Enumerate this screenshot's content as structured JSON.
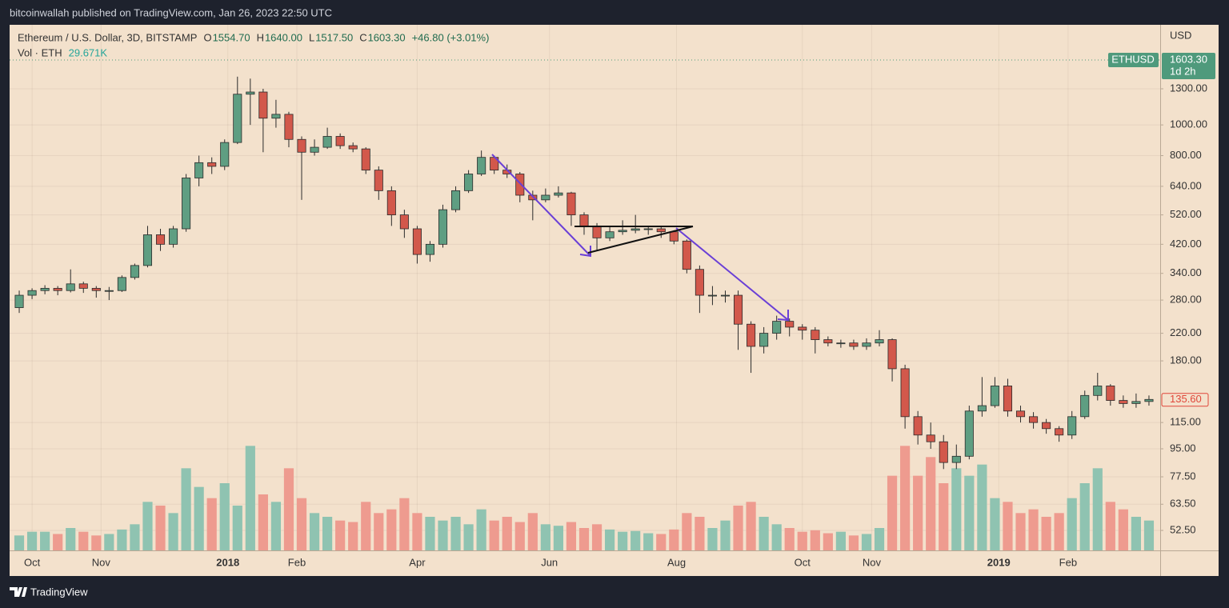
{
  "header": {
    "publisher": "bitcoinwallah published on TradingView.com, Jan 26, 2023 22:50 UTC"
  },
  "footer": {
    "brand": "TradingView"
  },
  "chart_data": {
    "type": "candlestick",
    "symbol": "Ethereum / U.S. Dollar, 3D, BITSTAMP",
    "legend_values": [
      {
        "key": "O",
        "value": "1554.70"
      },
      {
        "key": "H",
        "value": "1640.00"
      },
      {
        "key": "L",
        "value": "1517.50"
      },
      {
        "key": "C",
        "value": "1603.30"
      }
    ],
    "change": "+46.80 (+3.01%)",
    "volume_label": "Vol · ETH",
    "volume_value": "29.671K",
    "currency": "USD",
    "log_scale": true,
    "grid": true,
    "up_color": "#5f9e82",
    "down_color": "#d2584b",
    "volume_up_color": "#8fc3b1",
    "volume_down_color": "#ee9b8f",
    "xlim": [
      -0.75,
      88.875
    ],
    "xticks": [
      {
        "value": 1,
        "label": "Oct"
      },
      {
        "value": 6.375,
        "label": "Nov"
      },
      {
        "value": 16.25,
        "label": "2018"
      },
      {
        "value": 21.625,
        "label": "Feb"
      },
      {
        "value": 31,
        "label": "Apr"
      },
      {
        "value": 41.3,
        "label": "Jun"
      },
      {
        "value": 51.2,
        "label": "Aug"
      },
      {
        "value": 61,
        "label": "Oct"
      },
      {
        "value": 66.4,
        "label": "Nov"
      },
      {
        "value": 76.3,
        "label": "2019"
      },
      {
        "value": 81.7,
        "label": "Feb"
      }
    ],
    "ylim": [
      45.4,
      2070
    ],
    "yticks": [
      {
        "value": 1300,
        "label": "1300.00"
      },
      {
        "value": 1000,
        "label": "1000.00"
      },
      {
        "value": 800,
        "label": "800.00"
      },
      {
        "value": 640,
        "label": "640.00"
      },
      {
        "value": 520,
        "label": "520.00"
      },
      {
        "value": 420,
        "label": "420.00"
      },
      {
        "value": 340,
        "label": "340.00"
      },
      {
        "value": 280,
        "label": "280.00"
      },
      {
        "value": 220,
        "label": "220.00"
      },
      {
        "value": 180,
        "label": "180.00"
      },
      {
        "value": 115,
        "label": "115.00"
      },
      {
        "value": 95,
        "label": "95.00"
      },
      {
        "value": 77.5,
        "label": "77.50"
      },
      {
        "value": 63.5,
        "label": "63.50"
      },
      {
        "value": 52.5,
        "label": "52.50"
      }
    ],
    "price_markers": [
      {
        "name": "ETHUSD",
        "value": 1603.3,
        "label": "1603.30",
        "countdown": "1d 2h",
        "color": "#4f9a7c"
      },
      {
        "value": 135.6,
        "label": "135.60",
        "color": "#e0473a"
      }
    ],
    "volume_lim": [
      0,
      1500
    ],
    "ohlc": [
      [
        265,
        300,
        255,
        290
      ],
      [
        290,
        305,
        282,
        300
      ],
      [
        300,
        312,
        292,
        305
      ],
      [
        305,
        310,
        290,
        300
      ],
      [
        300,
        350,
        296,
        315
      ],
      [
        315,
        320,
        295,
        305
      ],
      [
        305,
        310,
        285,
        300
      ],
      [
        300,
        308,
        280,
        300
      ],
      [
        300,
        335,
        297,
        330
      ],
      [
        330,
        365,
        325,
        360
      ],
      [
        360,
        480,
        355,
        450
      ],
      [
        450,
        470,
        400,
        420
      ],
      [
        420,
        480,
        410,
        470
      ],
      [
        470,
        700,
        460,
        680
      ],
      [
        680,
        800,
        640,
        760
      ],
      [
        760,
        790,
        700,
        740
      ],
      [
        740,
        900,
        720,
        880
      ],
      [
        880,
        1420,
        870,
        1250
      ],
      [
        1250,
        1400,
        1000,
        1270
      ],
      [
        1270,
        1300,
        820,
        1050
      ],
      [
        1050,
        1200,
        980,
        1080
      ],
      [
        1080,
        1100,
        850,
        900
      ],
      [
        900,
        920,
        580,
        820
      ],
      [
        820,
        900,
        800,
        850
      ],
      [
        850,
        980,
        840,
        920
      ],
      [
        920,
        940,
        840,
        860
      ],
      [
        860,
        880,
        820,
        840
      ],
      [
        840,
        850,
        700,
        720
      ],
      [
        720,
        740,
        580,
        620
      ],
      [
        620,
        640,
        480,
        520
      ],
      [
        520,
        540,
        440,
        470
      ],
      [
        470,
        480,
        365,
        390
      ],
      [
        390,
        430,
        370,
        420
      ],
      [
        420,
        560,
        410,
        540
      ],
      [
        540,
        640,
        530,
        620
      ],
      [
        620,
        720,
        610,
        700
      ],
      [
        700,
        830,
        690,
        790
      ],
      [
        790,
        800,
        700,
        720
      ],
      [
        720,
        750,
        680,
        700
      ],
      [
        700,
        710,
        570,
        600
      ],
      [
        600,
        620,
        500,
        580
      ],
      [
        580,
        630,
        570,
        600
      ],
      [
        600,
        640,
        590,
        610
      ],
      [
        610,
        615,
        480,
        520
      ],
      [
        520,
        530,
        450,
        480
      ],
      [
        480,
        490,
        400,
        440
      ],
      [
        440,
        480,
        430,
        460
      ],
      [
        460,
        500,
        450,
        465
      ],
      [
        465,
        520,
        455,
        470
      ],
      [
        470,
        480,
        450,
        470
      ],
      [
        470,
        480,
        440,
        460
      ],
      [
        460,
        465,
        420,
        430
      ],
      [
        430,
        435,
        340,
        350
      ],
      [
        350,
        360,
        255,
        290
      ],
      [
        290,
        310,
        270,
        290
      ],
      [
        290,
        300,
        275,
        290
      ],
      [
        290,
        300,
        195,
        235
      ],
      [
        235,
        240,
        165,
        200
      ],
      [
        200,
        230,
        190,
        220
      ],
      [
        220,
        250,
        210,
        240
      ],
      [
        240,
        245,
        215,
        230
      ],
      [
        230,
        235,
        210,
        225
      ],
      [
        225,
        230,
        190,
        210
      ],
      [
        210,
        215,
        200,
        205
      ],
      [
        205,
        210,
        198,
        205
      ],
      [
        205,
        210,
        195,
        200
      ],
      [
        200,
        212,
        195,
        205
      ],
      [
        205,
        225,
        200,
        210
      ],
      [
        210,
        212,
        155,
        170
      ],
      [
        170,
        175,
        110,
        120
      ],
      [
        120,
        125,
        98,
        105
      ],
      [
        105,
        115,
        95,
        100
      ],
      [
        100,
        105,
        82,
        86
      ],
      [
        86,
        98,
        82,
        90
      ],
      [
        90,
        130,
        88,
        125
      ],
      [
        125,
        160,
        120,
        130
      ],
      [
        130,
        160,
        128,
        150
      ],
      [
        150,
        158,
        120,
        125
      ],
      [
        125,
        130,
        115,
        120
      ],
      [
        120,
        124,
        110,
        115
      ],
      [
        115,
        118,
        106,
        110
      ],
      [
        110,
        112,
        100,
        105
      ],
      [
        105,
        125,
        102,
        120
      ],
      [
        120,
        145,
        118,
        140
      ],
      [
        140,
        165,
        135,
        150
      ],
      [
        150,
        152,
        130,
        135
      ],
      [
        135,
        140,
        128,
        132
      ],
      [
        132,
        142,
        128,
        134
      ],
      [
        134,
        140,
        130,
        136
      ]
    ],
    "volume": [
      200,
      250,
      250,
      220,
      300,
      250,
      200,
      220,
      280,
      350,
      650,
      600,
      500,
      1100,
      850,
      700,
      900,
      600,
      1400,
      750,
      650,
      1100,
      700,
      500,
      450,
      400,
      380,
      650,
      500,
      550,
      700,
      500,
      450,
      400,
      450,
      350,
      550,
      400,
      450,
      380,
      500,
      350,
      330,
      380,
      300,
      350,
      280,
      250,
      260,
      230,
      220,
      280,
      500,
      450,
      300,
      400,
      600,
      650,
      450,
      350,
      300,
      250,
      270,
      230,
      250,
      200,
      220,
      300,
      1000,
      1400,
      1000,
      1250,
      900,
      1100,
      1000,
      1150,
      700,
      650,
      500,
      550,
      450,
      500,
      700,
      900,
      1100,
      650,
      550,
      450,
      400
    ]
  }
}
